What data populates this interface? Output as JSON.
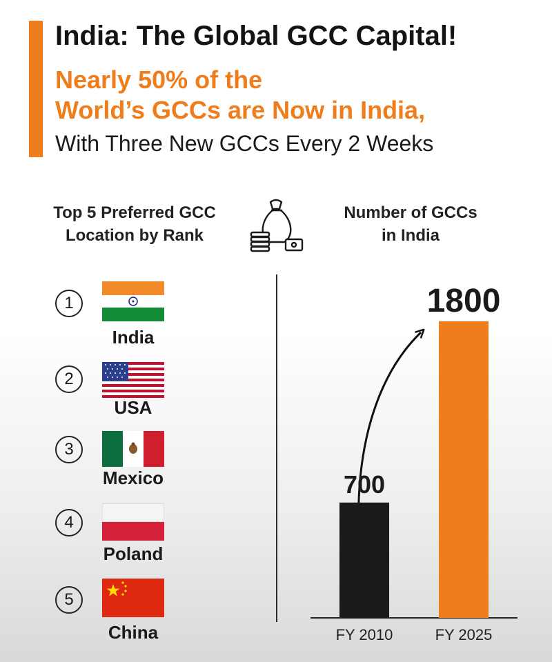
{
  "header": {
    "title": "India: The Global GCC Capital!",
    "subtitle_line1": "Nearly 50% of the",
    "subtitle_line2": "World’s GCCs are Now in India,",
    "tagline": "With Three New GCCs Every 2 Weeks"
  },
  "ranking": {
    "heading_line1": "Top 5 Preferred GCC",
    "heading_line2": "Location by Rank",
    "items": [
      {
        "rank": "1",
        "country": "India",
        "flag_icon": "india-flag-icon"
      },
      {
        "rank": "2",
        "country": "USA",
        "flag_icon": "usa-flag-icon"
      },
      {
        "rank": "3",
        "country": "Mexico",
        "flag_icon": "mexico-flag-icon"
      },
      {
        "rank": "4",
        "country": "Poland",
        "flag_icon": "poland-flag-icon"
      },
      {
        "rank": "5",
        "country": "China",
        "flag_icon": "china-flag-icon"
      }
    ]
  },
  "center_icon": "money-bag-icon",
  "chart_heading_line1": "Number of GCCs",
  "chart_heading_line2": "in India",
  "colors": {
    "accent": "#f07d1b",
    "dark_bar": "#1a1a1a",
    "text": "#1a1a1a"
  },
  "chart_data": {
    "type": "bar",
    "title": "",
    "xlabel": "",
    "ylabel": "",
    "categories": [
      "FY 2010",
      "FY 2025"
    ],
    "values": [
      700,
      1800
    ],
    "data_labels": [
      "700",
      "1800"
    ],
    "bar_colors": [
      "#1a1a1a",
      "#f07d1b"
    ],
    "ylim": [
      0,
      1800
    ],
    "grid": false,
    "annotation": "curved arrow from FY 2010 bar to FY 2025 bar"
  }
}
